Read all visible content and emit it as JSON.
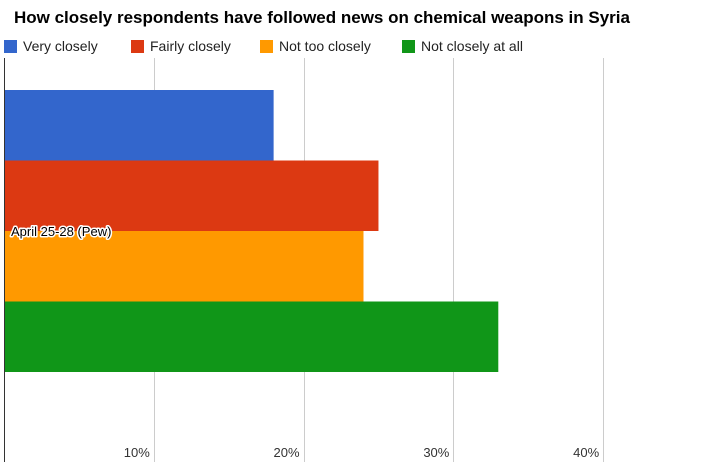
{
  "chart_data": {
    "type": "bar",
    "orientation": "horizontal",
    "title": "How closely respondents have followed news on chemical weapons in Syria",
    "categories": [
      "April 25-28 (Pew)"
    ],
    "series": [
      {
        "name": "Very closely",
        "color": "#3366cc",
        "values": [
          18
        ]
      },
      {
        "name": "Fairly closely",
        "color": "#dc3912",
        "values": [
          25
        ]
      },
      {
        "name": "Not too closely",
        "color": "#ff9900",
        "values": [
          24
        ]
      },
      {
        "name": "Not closely at all",
        "color": "#109618",
        "values": [
          33
        ]
      }
    ],
    "xlim": [
      0,
      47
    ],
    "xticks": [
      10,
      20,
      30,
      40
    ],
    "xtick_labels": [
      "10%",
      "20%",
      "30%",
      "40%"
    ],
    "grid": true,
    "legend_position": "top"
  }
}
